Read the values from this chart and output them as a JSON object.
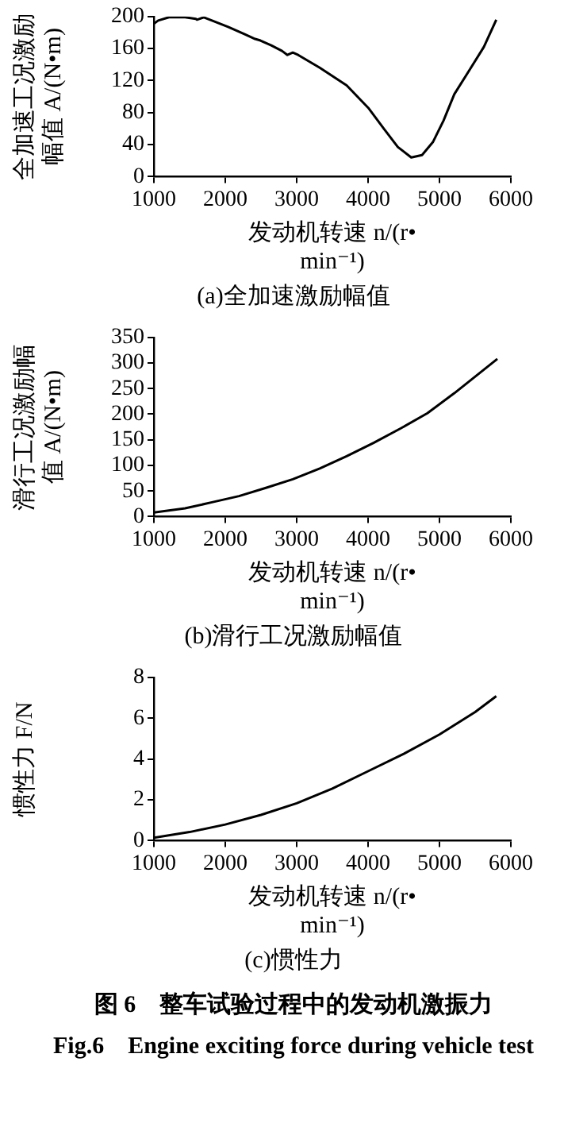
{
  "chart_data": [
    {
      "type": "line",
      "title": "(a)全加速激励幅值",
      "xlabel": "发动机转速 n/(r•min⁻¹)",
      "ylabel": "全加速工况激励幅值 A/(N•m)",
      "xlim": [
        1000,
        6000
      ],
      "xticks": [
        1000,
        2000,
        3000,
        4000,
        5000,
        6000
      ],
      "ylim": [
        0,
        200
      ],
      "yticks": [
        0,
        40,
        80,
        120,
        160,
        200
      ],
      "series": [
        {
          "color": "#000000",
          "x": [
            1000,
            1060,
            1211,
            1437,
            1588,
            1603,
            1700,
            1814,
            2040,
            2267,
            2418,
            2493,
            2644,
            2795,
            2870,
            2946,
            3021,
            3323,
            3700,
            4002,
            4228,
            4417,
            4605,
            4756,
            4907,
            5057,
            5208,
            5434,
            5622,
            5796
          ],
          "values": [
            191,
            195,
            199,
            199,
            197,
            196,
            199,
            195,
            187,
            178,
            172,
            170,
            164,
            157,
            152,
            155,
            152,
            136,
            114,
            86,
            59,
            37,
            24,
            27,
            43,
            70,
            103,
            135,
            162,
            196
          ]
        }
      ]
    },
    {
      "type": "line",
      "title": "(b)滑行工况激励幅值",
      "xlabel": "发动机转速 n/(r•min⁻¹)",
      "ylabel": "滑行工况激励幅值 A/(N•m)",
      "xlim": [
        1000,
        6000
      ],
      "xticks": [
        1000,
        2000,
        3000,
        4000,
        5000,
        6000
      ],
      "ylim": [
        0,
        350
      ],
      "yticks": [
        0,
        50,
        100,
        150,
        200,
        250,
        300,
        350
      ],
      "series": [
        {
          "color": "#000000",
          "x": [
            1000,
            1437,
            1814,
            2192,
            2569,
            2946,
            3323,
            3700,
            4077,
            4454,
            4831,
            5208,
            5811
          ],
          "values": [
            8,
            16,
            28,
            40,
            56,
            73,
            94,
            118,
            144,
            172,
            202,
            241,
            308
          ]
        }
      ]
    },
    {
      "type": "line",
      "title": "(c)惯性力",
      "xlabel": "发动机转速 n/(r•min⁻¹)",
      "ylabel": "惯性力 F/N",
      "xlim": [
        1000,
        6000
      ],
      "xticks": [
        1000,
        2000,
        3000,
        4000,
        5000,
        6000
      ],
      "ylim": [
        0,
        8
      ],
      "yticks": [
        0,
        2,
        4,
        6,
        8
      ],
      "annotations": [
        "图 6　整车试验过程中的发动机激振力",
        "Fig.6　Engine exciting force during vehicle test"
      ],
      "series": [
        {
          "color": "#000000",
          "x": [
            1000,
            1500,
            2000,
            2500,
            3000,
            3500,
            4000,
            4500,
            5000,
            5500,
            5796
          ],
          "values": [
            0.14,
            0.42,
            0.79,
            1.26,
            1.83,
            2.55,
            3.4,
            4.25,
            5.2,
            6.3,
            7.08
          ]
        }
      ]
    }
  ]
}
